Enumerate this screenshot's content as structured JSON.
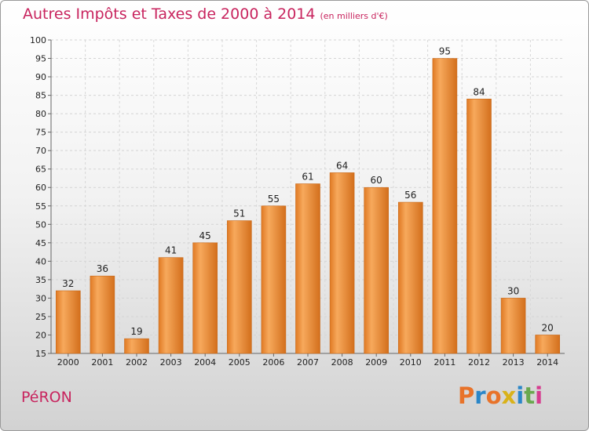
{
  "header": {
    "title": "Autres Impôts et Taxes de 2000 à 2014",
    "subtitle": "(en milliers d'€)"
  },
  "footer": {
    "commune": "PéRON",
    "logo_text": "Proxiti",
    "logo_colors": [
      "#e8732a",
      "#2a86c8",
      "#e8732a",
      "#d9b21a",
      "#2a86c8",
      "#6aa84f",
      "#d63c8f"
    ]
  },
  "chart_data": {
    "type": "bar",
    "title": "Autres Impôts et Taxes de 2000 à 2014",
    "subtitle": "(en milliers d'€)",
    "xlabel": "",
    "ylabel": "",
    "categories": [
      "2000",
      "2001",
      "2002",
      "2003",
      "2004",
      "2005",
      "2006",
      "2007",
      "2008",
      "2009",
      "2010",
      "2011",
      "2012",
      "2013",
      "2014"
    ],
    "values": [
      32,
      36,
      19,
      41,
      45,
      51,
      55,
      61,
      64,
      60,
      56,
      95,
      84,
      30,
      20
    ],
    "ylim": [
      15,
      100
    ],
    "yticks": [
      15,
      20,
      25,
      30,
      35,
      40,
      45,
      50,
      55,
      60,
      65,
      70,
      75,
      80,
      85,
      90,
      95,
      100
    ],
    "grid": true,
    "bar_color": "#e8822a",
    "bar_highlight": "#f7a85a"
  }
}
